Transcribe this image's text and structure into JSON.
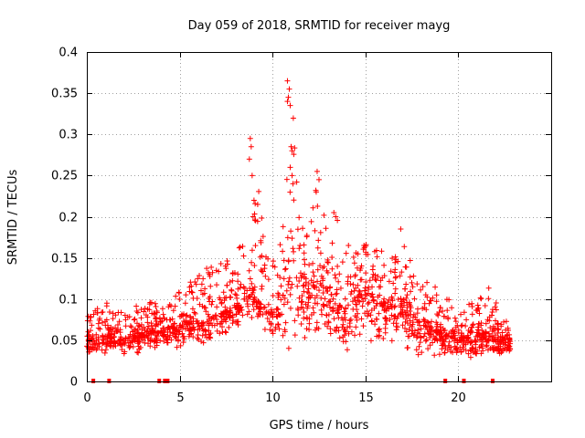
{
  "chart_data": {
    "type": "scatter",
    "title": "Day 059 of 2018, SRMTID for receiver mayg",
    "xlabel": "GPS time / hours",
    "ylabel": "SRMTID / TECUs",
    "xlim": [
      0,
      25
    ],
    "ylim": [
      0,
      0.4
    ],
    "x_ticks": [
      0,
      5,
      10,
      15,
      20
    ],
    "y_ticks": [
      0,
      0.05,
      0.1,
      0.15,
      0.2,
      0.25,
      0.3,
      0.35,
      0.4
    ],
    "x_tick_labels": [
      "0",
      "5",
      "10",
      "15",
      "20"
    ],
    "y_tick_labels": [
      "0",
      "0.05",
      "0.1",
      "0.15",
      "0.2",
      "0.25",
      "0.3",
      "0.35",
      "0.4"
    ],
    "grid": true,
    "marker": "plus",
    "series": [
      {
        "name": "SRMTID",
        "color": "#ff0000",
        "envelope": {
          "hours": [
            0,
            0.5,
            1,
            1.5,
            2,
            2.5,
            3,
            3.5,
            4,
            4.5,
            5,
            5.5,
            6,
            6.5,
            7,
            7.5,
            8,
            8.5,
            9,
            9.5,
            10,
            10.5,
            11,
            11.5,
            12,
            12.5,
            13,
            13.5,
            14,
            14.5,
            15,
            15.5,
            16,
            16.5,
            17,
            17.5,
            18,
            18.5,
            19,
            19.5,
            20,
            20.5,
            21,
            21.5,
            22,
            22.5,
            22.8
          ],
          "median": [
            0.05,
            0.05,
            0.055,
            0.05,
            0.05,
            0.055,
            0.055,
            0.06,
            0.06,
            0.065,
            0.065,
            0.07,
            0.07,
            0.075,
            0.08,
            0.085,
            0.09,
            0.1,
            0.11,
            0.09,
            0.08,
            0.1,
            0.13,
            0.12,
            0.11,
            0.12,
            0.11,
            0.09,
            0.09,
            0.1,
            0.11,
            0.1,
            0.095,
            0.09,
            0.09,
            0.08,
            0.07,
            0.065,
            0.06,
            0.055,
            0.05,
            0.05,
            0.055,
            0.06,
            0.05,
            0.05,
            0.05
          ],
          "high": [
            0.08,
            0.09,
            0.1,
            0.08,
            0.09,
            0.09,
            0.1,
            0.1,
            0.09,
            0.1,
            0.11,
            0.12,
            0.13,
            0.14,
            0.14,
            0.15,
            0.14,
            0.2,
            0.29,
            0.22,
            0.15,
            0.18,
            0.36,
            0.2,
            0.2,
            0.25,
            0.2,
            0.21,
            0.17,
            0.16,
            0.17,
            0.16,
            0.16,
            0.15,
            0.18,
            0.14,
            0.13,
            0.14,
            0.1,
            0.1,
            0.08,
            0.1,
            0.09,
            0.12,
            0.1,
            0.08,
            0.07
          ],
          "low": [
            0.03,
            0.03,
            0.03,
            0.03,
            0.03,
            0.03,
            0.03,
            0.04,
            0.04,
            0.04,
            0.04,
            0.04,
            0.04,
            0.04,
            0.05,
            0.05,
            0.06,
            0.07,
            0.07,
            0.06,
            0.05,
            0.04,
            0.03,
            0.04,
            0.04,
            0.04,
            0.05,
            0.05,
            0.03,
            0.04,
            0.05,
            0.04,
            0.04,
            0.03,
            0.03,
            0.03,
            0.03,
            0.03,
            0.03,
            0.03,
            0.02,
            0.02,
            0.03,
            0.03,
            0.03,
            0.03,
            0.03
          ]
        },
        "spikes": [
          {
            "x": 8.8,
            "y": 0.295
          },
          {
            "x": 8.85,
            "y": 0.285
          },
          {
            "x": 8.75,
            "y": 0.27
          },
          {
            "x": 8.9,
            "y": 0.25
          },
          {
            "x": 9.0,
            "y": 0.22
          },
          {
            "x": 8.95,
            "y": 0.2
          },
          {
            "x": 10.8,
            "y": 0.365
          },
          {
            "x": 10.9,
            "y": 0.355
          },
          {
            "x": 10.85,
            "y": 0.345
          },
          {
            "x": 10.8,
            "y": 0.34
          },
          {
            "x": 10.95,
            "y": 0.335
          },
          {
            "x": 11.0,
            "y": 0.285
          },
          {
            "x": 11.05,
            "y": 0.28
          },
          {
            "x": 10.95,
            "y": 0.26
          },
          {
            "x": 11.05,
            "y": 0.25
          },
          {
            "x": 11.1,
            "y": 0.24
          },
          {
            "x": 12.4,
            "y": 0.255
          },
          {
            "x": 12.5,
            "y": 0.245
          },
          {
            "x": 12.35,
            "y": 0.23
          },
          {
            "x": 13.3,
            "y": 0.205
          },
          {
            "x": 13.4,
            "y": 0.2
          },
          {
            "x": 16.9,
            "y": 0.185
          }
        ],
        "gap_markers_hours": [
          0.35,
          1.2,
          3.9,
          4.2,
          4.35,
          19.3,
          20.3,
          21.85
        ]
      }
    ]
  }
}
